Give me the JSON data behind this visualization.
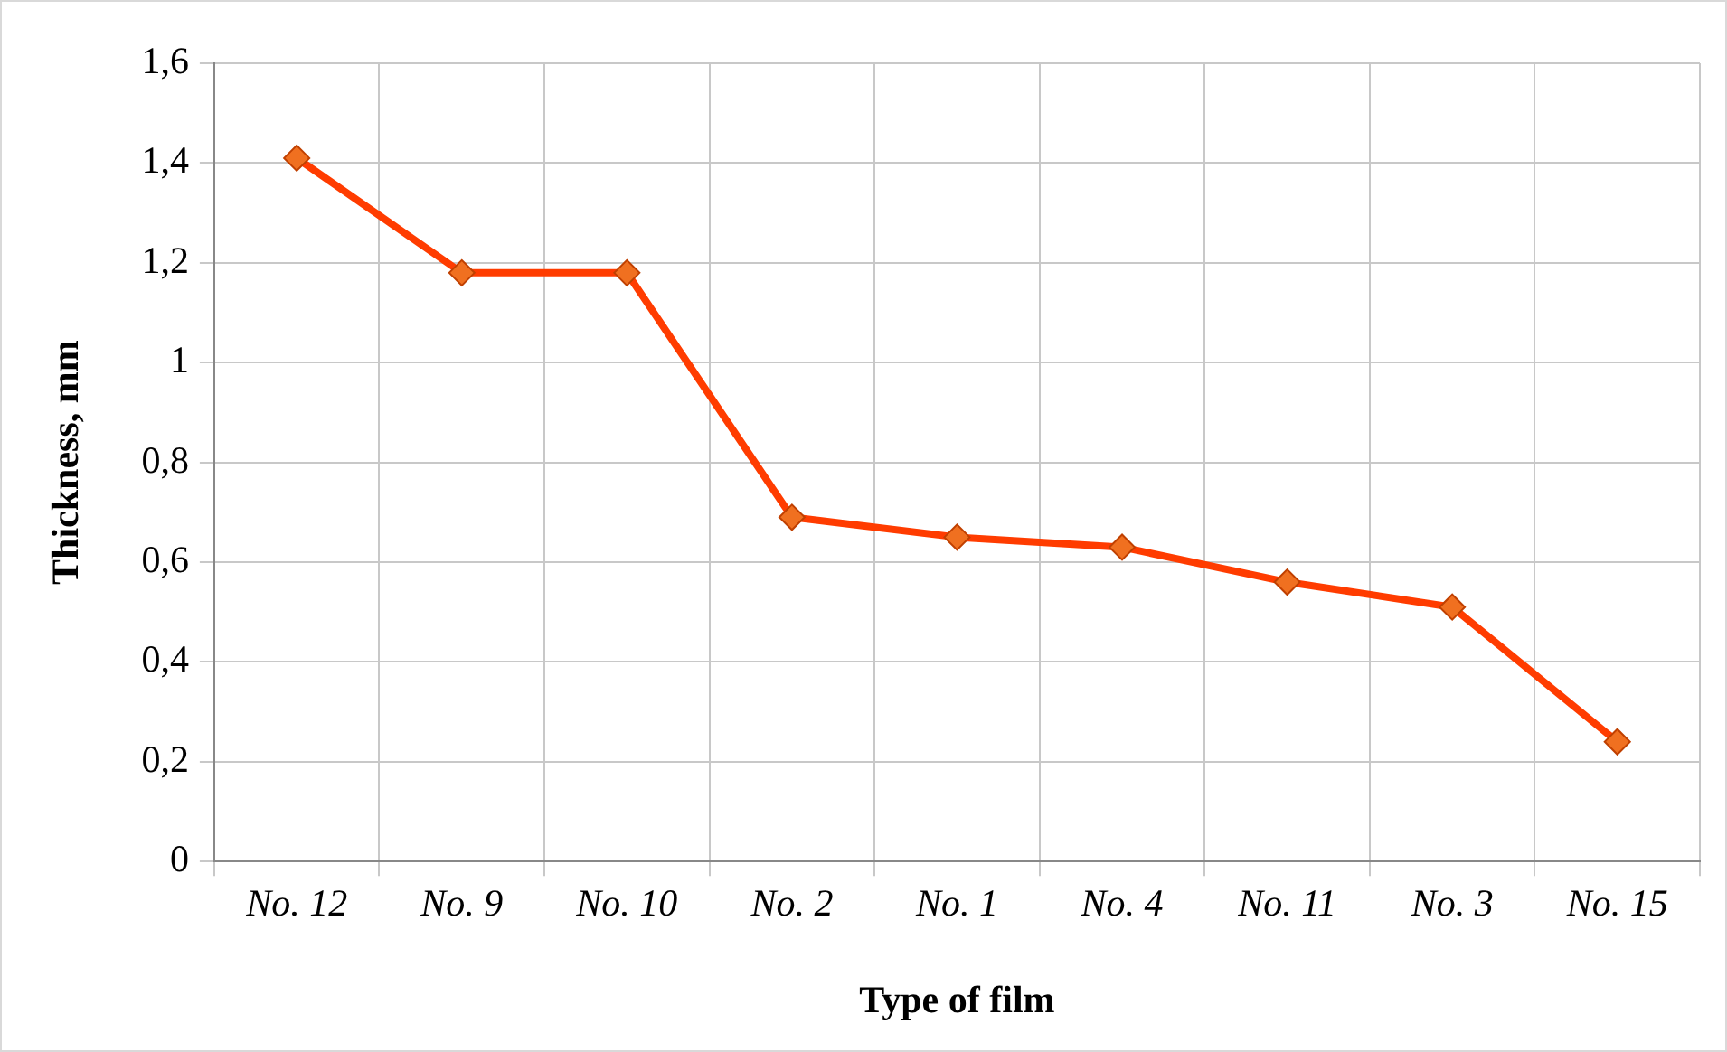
{
  "chart_data": {
    "type": "line",
    "xlabel": "Type of film",
    "ylabel": "Thickness, mm",
    "categories": [
      "No. 12",
      "No. 9",
      "No. 10",
      "No. 2",
      "No. 1",
      "No. 4",
      "No. 11",
      "No. 3",
      "No. 15"
    ],
    "series": [
      {
        "color": "#ff3c00",
        "values": [
          1.41,
          1.18,
          1.18,
          0.69,
          0.65,
          0.63,
          0.56,
          0.51,
          0.24
        ]
      }
    ],
    "ylim": [
      0,
      1.6
    ],
    "yticks": [
      0,
      {
        "value": 0.2,
        "label": "0,2"
      },
      {
        "value": 0.4,
        "label": "0,4"
      },
      {
        "value": 0.6,
        "label": "0,6"
      },
      {
        "value": 0.8,
        "label": "0,8"
      },
      1,
      {
        "value": 1.2,
        "label": "1,2"
      },
      {
        "value": 1.4,
        "label": "1,4"
      },
      {
        "value": 1.6,
        "label": "1,6"
      }
    ],
    "grid": true,
    "legend": false,
    "marker": "diamond",
    "line_style": "solid"
  }
}
